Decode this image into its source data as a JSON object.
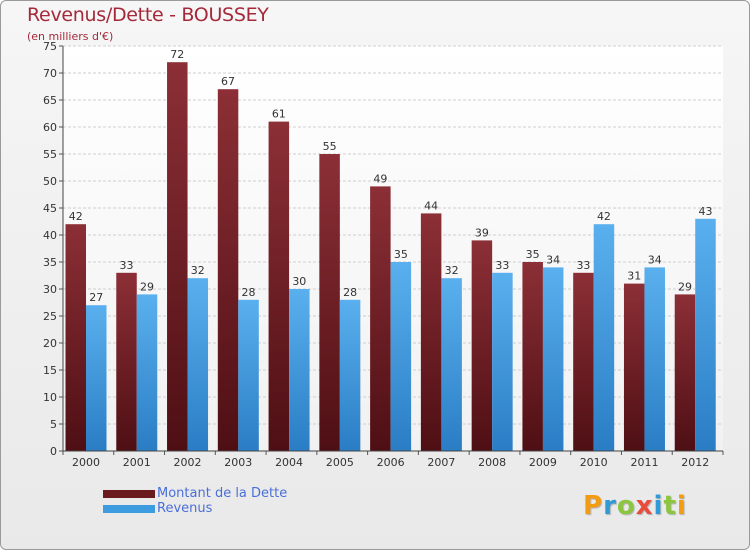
{
  "header": {
    "title": "Revenus/Dette - BOUSSEY",
    "subtitle": "(en milliers d'€)"
  },
  "logo": {
    "text": "Proxiti",
    "letters": [
      {
        "ch": "P",
        "color": "#f39c12"
      },
      {
        "ch": "r",
        "color": "#2e9bd6"
      },
      {
        "ch": "o",
        "color": "#8cc63f"
      },
      {
        "ch": "x",
        "color": "#e74c3c"
      },
      {
        "ch": "i",
        "color": "#2e9bd6"
      },
      {
        "ch": "t",
        "color": "#8cc63f"
      },
      {
        "ch": "i",
        "color": "#f39c12"
      }
    ]
  },
  "chart_data": {
    "type": "bar",
    "title": "Revenus/Dette - BOUSSEY",
    "subtitle": "(en milliers d'€)",
    "categories": [
      "2000",
      "2001",
      "2002",
      "2003",
      "2004",
      "2005",
      "2006",
      "2007",
      "2008",
      "2009",
      "2010",
      "2011",
      "2012"
    ],
    "series": [
      {
        "name": "Montant de la Dette",
        "color": "#7a1f26",
        "values": [
          42,
          33,
          72,
          67,
          61,
          55,
          49,
          44,
          39,
          35,
          33,
          31,
          29
        ]
      },
      {
        "name": "Revenus",
        "color": "#3d9be0",
        "values": [
          27,
          29,
          32,
          28,
          30,
          28,
          35,
          32,
          33,
          34,
          42,
          34,
          43
        ]
      }
    ],
    "ylim": [
      0,
      75
    ],
    "yticks": [
      0,
      5,
      10,
      15,
      20,
      25,
      30,
      35,
      40,
      45,
      50,
      55,
      60,
      65,
      70,
      75
    ],
    "grid": true,
    "legend_position": "bottom-left",
    "data_labels": true
  }
}
